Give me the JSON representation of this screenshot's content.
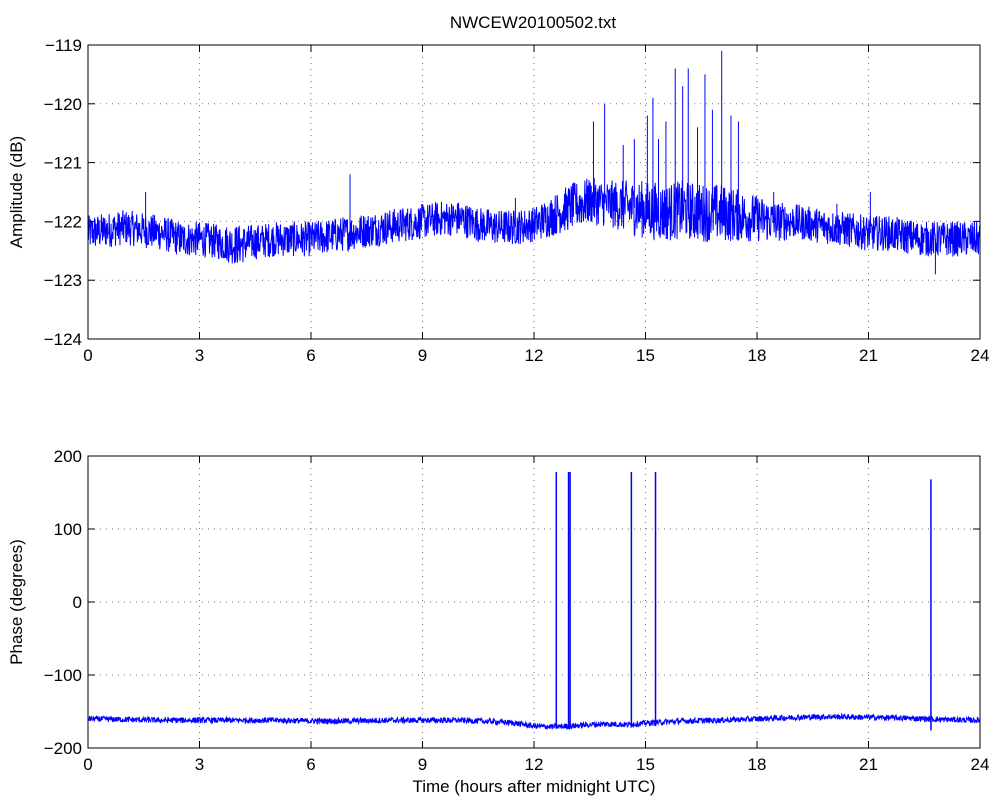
{
  "figure_title": "NWCEW20100502.txt",
  "colors": {
    "series": "#0000ff",
    "axes": "#000000",
    "background": "#ffffff"
  },
  "chart_data": [
    {
      "type": "line",
      "title": "NWCEW20100502.txt",
      "xlabel": "",
      "ylabel": "Amplitude (dB)",
      "xlim": [
        0,
        24
      ],
      "ylim": [
        -124,
        -119
      ],
      "xticks": [
        0,
        3,
        6,
        9,
        12,
        15,
        18,
        21,
        24
      ],
      "xtick_labels": [
        "0",
        "3",
        "6",
        "9",
        "12",
        "15",
        "18",
        "21",
        "24"
      ],
      "yticks": [
        -124,
        -123,
        -122,
        -121,
        -120,
        -119
      ],
      "ytick_labels": [
        "−124",
        "−123",
        "−122",
        "−121",
        "−120",
        "−119"
      ],
      "grid": true,
      "series": [
        {
          "color": "#0000ff",
          "x": [
            0,
            0.5,
            1,
            1.5,
            2,
            2.5,
            3,
            3.5,
            4,
            4.5,
            5,
            5.5,
            6,
            6.5,
            7,
            7.5,
            8,
            8.5,
            9,
            9.5,
            10,
            10.5,
            11,
            11.5,
            12,
            12.5,
            13,
            13.5,
            14,
            14.5,
            15,
            15.5,
            16,
            16.5,
            17,
            17.5,
            18,
            18.5,
            19,
            19.5,
            20,
            20.5,
            21,
            21.5,
            22,
            22.5,
            23,
            23.5,
            24
          ],
          "y": [
            -122.2,
            -122.15,
            -122.1,
            -122.15,
            -122.2,
            -122.3,
            -122.3,
            -122.35,
            -122.4,
            -122.35,
            -122.3,
            -122.3,
            -122.3,
            -122.25,
            -122.2,
            -122.15,
            -122.1,
            -122.05,
            -122.0,
            -121.95,
            -121.95,
            -122.05,
            -122.1,
            -122.1,
            -122.05,
            -121.9,
            -121.75,
            -121.65,
            -121.7,
            -121.75,
            -121.8,
            -121.85,
            -121.8,
            -121.85,
            -121.85,
            -121.9,
            -121.95,
            -122.0,
            -122.0,
            -122.05,
            -122.1,
            -122.15,
            -122.2,
            -122.2,
            -122.25,
            -122.3,
            -122.3,
            -122.3,
            -122.3
          ],
          "noise_halfwidth": [
            0.3,
            0.3,
            0.3,
            0.3,
            0.3,
            0.3,
            0.3,
            0.3,
            0.35,
            0.3,
            0.3,
            0.3,
            0.3,
            0.3,
            0.3,
            0.3,
            0.3,
            0.3,
            0.3,
            0.3,
            0.3,
            0.3,
            0.3,
            0.3,
            0.3,
            0.35,
            0.4,
            0.4,
            0.4,
            0.45,
            0.5,
            0.5,
            0.5,
            0.5,
            0.5,
            0.45,
            0.4,
            0.35,
            0.3,
            0.3,
            0.3,
            0.3,
            0.3,
            0.3,
            0.3,
            0.3,
            0.3,
            0.3,
            0.3
          ],
          "peaks": [
            {
              "x": 13.6,
              "y": -120.3
            },
            {
              "x": 13.9,
              "y": -120.0
            },
            {
              "x": 14.4,
              "y": -120.7
            },
            {
              "x": 14.7,
              "y": -120.6
            },
            {
              "x": 15.05,
              "y": -120.2
            },
            {
              "x": 15.2,
              "y": -119.9
            },
            {
              "x": 15.35,
              "y": -120.6
            },
            {
              "x": 15.55,
              "y": -120.3
            },
            {
              "x": 15.8,
              "y": -119.4
            },
            {
              "x": 16.0,
              "y": -119.7
            },
            {
              "x": 16.15,
              "y": -119.4
            },
            {
              "x": 16.4,
              "y": -120.4
            },
            {
              "x": 16.6,
              "y": -119.5
            },
            {
              "x": 16.8,
              "y": -120.1
            },
            {
              "x": 17.05,
              "y": -119.1
            },
            {
              "x": 17.3,
              "y": -120.2
            },
            {
              "x": 17.5,
              "y": -120.3
            },
            {
              "x": 18.45,
              "y": -121.5
            },
            {
              "x": 7.05,
              "y": -121.2
            },
            {
              "x": 11.5,
              "y": -121.6
            },
            {
              "x": 21.05,
              "y": -121.5
            },
            {
              "x": 20.15,
              "y": -121.7
            },
            {
              "x": 1.55,
              "y": -121.5
            },
            {
              "x": 22.8,
              "y": -122.9
            }
          ]
        }
      ]
    },
    {
      "type": "line",
      "title": "",
      "xlabel": "Time (hours after midnight UTC)",
      "ylabel": "Phase (degrees)",
      "xlim": [
        0,
        24
      ],
      "ylim": [
        -200,
        200
      ],
      "xticks": [
        0,
        3,
        6,
        9,
        12,
        15,
        18,
        21,
        24
      ],
      "xtick_labels": [
        "0",
        "3",
        "6",
        "9",
        "12",
        "15",
        "18",
        "21",
        "24"
      ],
      "yticks": [
        -200,
        -100,
        0,
        100,
        200
      ],
      "ytick_labels": [
        "−200",
        "−100",
        "0",
        "100",
        "200"
      ],
      "grid": true,
      "series": [
        {
          "color": "#0000ff",
          "x": [
            0,
            1,
            2,
            3,
            4,
            5,
            6,
            7,
            8,
            9,
            10,
            11,
            11.5,
            12,
            12.5,
            13,
            13.5,
            14,
            14.5,
            15,
            16,
            17,
            18,
            19,
            20,
            21,
            22,
            23,
            24
          ],
          "y": [
            -160,
            -161,
            -162,
            -162,
            -162,
            -162,
            -163,
            -163,
            -162,
            -162,
            -162,
            -164,
            -166,
            -170,
            -171,
            -170,
            -168,
            -167,
            -168,
            -166,
            -163,
            -162,
            -160,
            -158,
            -157,
            -158,
            -159,
            -161,
            -162
          ],
          "noise_halfwidth": 4,
          "spikes": [
            {
              "x": 12.6,
              "top": 178,
              "bottom": -172
            },
            {
              "x": 12.93,
              "top": 178,
              "bottom": -172
            },
            {
              "x": 12.97,
              "top": 178,
              "bottom": -172
            },
            {
              "x": 14.62,
              "top": 178,
              "bottom": -170
            },
            {
              "x": 15.27,
              "top": 178,
              "bottom": -170
            },
            {
              "x": 22.68,
              "top": 168,
              "bottom": -176
            }
          ]
        }
      ]
    }
  ]
}
